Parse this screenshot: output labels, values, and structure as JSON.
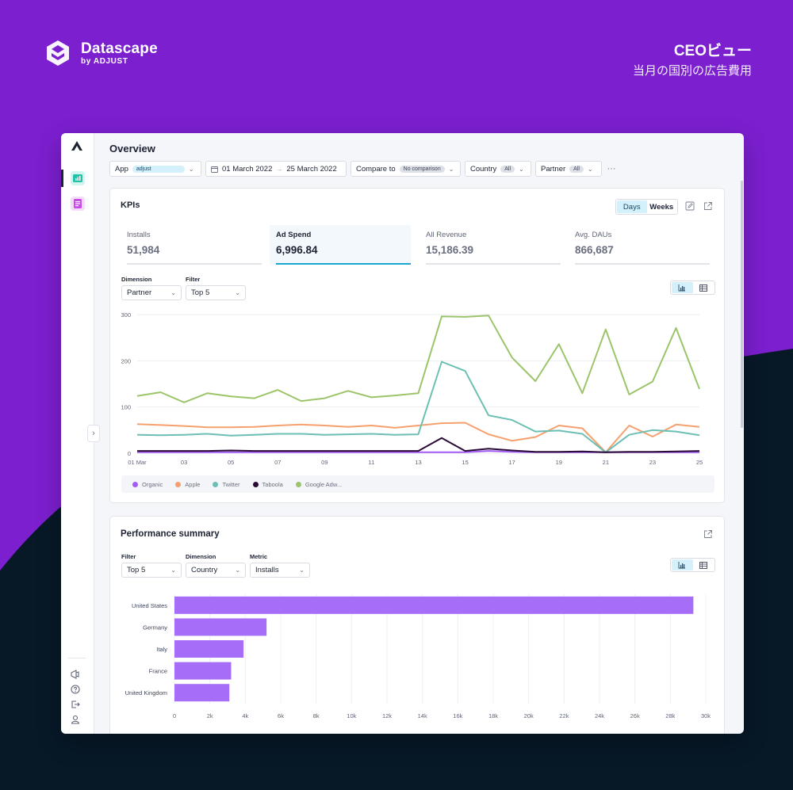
{
  "brand": {
    "name": "Datascape",
    "sub": "by ADJUST"
  },
  "headline": {
    "title": "CEOビュー",
    "subtitle": "当月の国別の広告費用"
  },
  "page": {
    "title": "Overview"
  },
  "filters": {
    "app": {
      "label": "App",
      "value": "adjust"
    },
    "date": {
      "start": "01 March 2022",
      "arrow": "→",
      "end": "25 March 2022"
    },
    "compare": {
      "label": "Compare to",
      "value": "No comparison"
    },
    "country": {
      "label": "Country",
      "value": "All"
    },
    "partner": {
      "label": "Partner",
      "value": "All"
    },
    "more": "···"
  },
  "kpi_card": {
    "title": "KPIs",
    "toggle": {
      "days": "Days",
      "weeks": "Weeks",
      "selected": "Days"
    },
    "kpis": [
      {
        "label": "Installs",
        "value": "51,984"
      },
      {
        "label": "Ad Spend",
        "value": "6,996.84",
        "selected": true
      },
      {
        "label": "All Revenue",
        "value": "15,186.39"
      },
      {
        "label": "Avg. DAUs",
        "value": "866,687"
      }
    ],
    "dimension": {
      "label": "Dimension",
      "value": "Partner"
    },
    "filter": {
      "label": "Filter",
      "value": "Top 5"
    }
  },
  "perf_card": {
    "title": "Performance summary",
    "filter": {
      "label": "Filter",
      "value": "Top 5"
    },
    "dimension": {
      "label": "Dimension",
      "value": "Country"
    },
    "metric": {
      "label": "Metric",
      "value": "Installs"
    }
  },
  "chart_data": [
    {
      "type": "line",
      "title": "",
      "xlabel": "",
      "ylabel": "",
      "ylim": [
        0,
        300
      ],
      "yticks": [
        0,
        100,
        200,
        300
      ],
      "x": [
        "01 Mar",
        "02",
        "03",
        "04",
        "05",
        "06",
        "07",
        "08",
        "09",
        "10",
        "11",
        "12",
        "13",
        "14",
        "15",
        "16",
        "17",
        "18",
        "19",
        "20",
        "21",
        "22",
        "23",
        "24",
        "25"
      ],
      "xtick_labels": [
        "01 Mar",
        "03",
        "05",
        "07",
        "09",
        "11",
        "13",
        "15",
        "17",
        "19",
        "21",
        "23",
        "25"
      ],
      "grid": true,
      "legend": "bottom",
      "series": [
        {
          "name": "Organic",
          "color": "#a35cf5",
          "values": [
            2,
            2,
            2,
            2,
            2,
            2,
            2,
            2,
            2,
            2,
            2,
            2,
            2,
            2,
            2,
            5,
            3,
            2,
            2,
            2,
            2,
            2,
            2,
            2,
            2
          ]
        },
        {
          "name": "Apple",
          "color": "#f5a06e",
          "values": [
            63,
            61,
            59,
            56,
            56,
            57,
            60,
            62,
            60,
            57,
            60,
            55,
            60,
            65,
            66,
            41,
            27,
            35,
            60,
            54,
            2,
            60,
            36,
            62,
            57
          ]
        },
        {
          "name": "Twitter",
          "color": "#6cbfb3",
          "values": [
            40,
            39,
            40,
            42,
            38,
            40,
            42,
            42,
            40,
            41,
            42,
            40,
            41,
            198,
            178,
            82,
            72,
            47,
            49,
            42,
            2,
            40,
            50,
            47,
            39
          ]
        },
        {
          "name": "Taboola",
          "color": "#2a0b36",
          "values": [
            5,
            5,
            5,
            5,
            6,
            5,
            5,
            5,
            5,
            5,
            5,
            5,
            5,
            33,
            5,
            10,
            6,
            3,
            3,
            4,
            2,
            3,
            3,
            4,
            5
          ]
        },
        {
          "name": "Google Adw...",
          "color": "#9cc46a",
          "values": [
            124,
            132,
            110,
            130,
            123,
            119,
            137,
            113,
            119,
            135,
            121,
            125,
            130,
            296,
            295,
            298,
            207,
            156,
            236,
            130,
            268,
            127,
            155,
            271,
            139
          ]
        }
      ]
    },
    {
      "type": "bar",
      "orientation": "horizontal",
      "title": "",
      "xlabel": "",
      "ylabel": "",
      "categories": [
        "United States",
        "Germany",
        "Italy",
        "France",
        "United Kingdom"
      ],
      "values": [
        29300,
        5200,
        3900,
        3200,
        3100
      ],
      "xlim": [
        0,
        30000
      ],
      "xtick_labels": [
        "0",
        "2k",
        "4k",
        "6k",
        "8k",
        "10k",
        "12k",
        "14k",
        "16k",
        "18k",
        "20k",
        "22k",
        "24k",
        "26k",
        "28k",
        "30k"
      ],
      "grid": true,
      "color": "#a66ef8"
    }
  ],
  "colors": {
    "accent": "#19a7cf",
    "brand_purple": "#7b1fcf",
    "dark_bg": "#071827"
  }
}
